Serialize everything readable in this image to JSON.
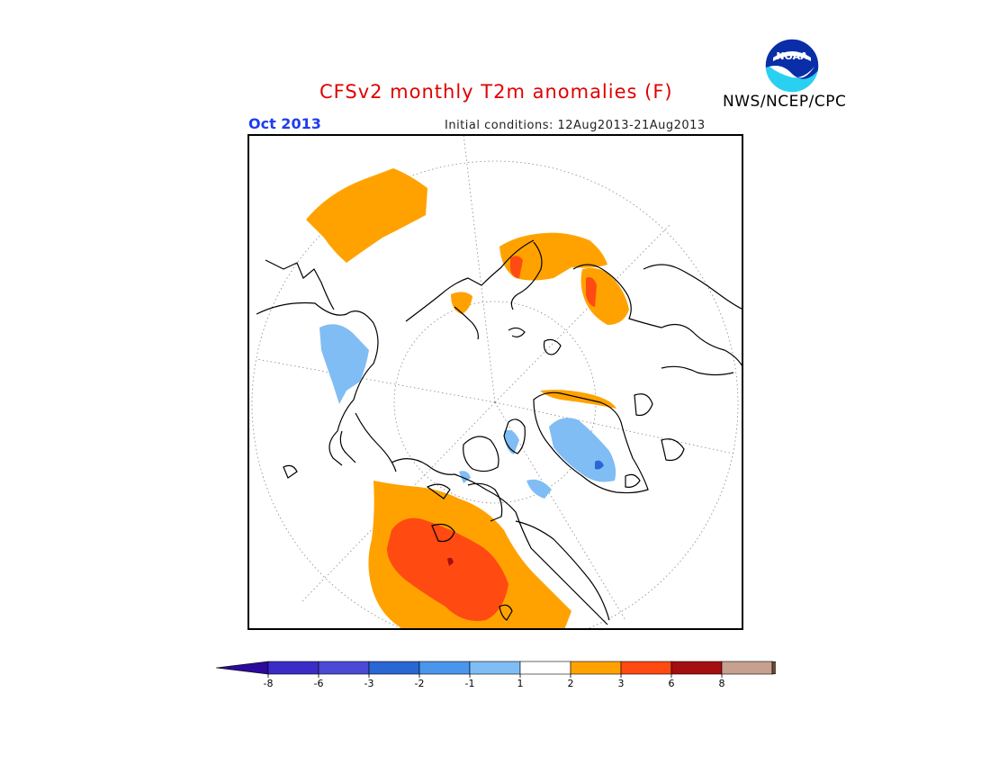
{
  "title": "CFSv2 monthly T2m anomalies (F)",
  "agency": "NWS/NCEP/CPC",
  "logo_text": "NOAA",
  "valid_month": "Oct 2013",
  "initial_conditions": "Initial conditions: 12Aug2013-21Aug2013",
  "colors": {
    "title": "#e00000",
    "valid_month": "#1e3cf0",
    "frame": "#000000"
  },
  "colorbar": {
    "ticks": [
      "-8",
      "-6",
      "-3",
      "-2",
      "-1",
      "1",
      "2",
      "3",
      "6",
      "8"
    ],
    "below_color": "#2b0a9c",
    "above_color": "#6b4a3a",
    "colors": [
      "#3b2cc8",
      "#4a4ad6",
      "#2a66d4",
      "#4a96ec",
      "#80bdf4",
      "#ffffff",
      "#ffa200",
      "#ff4a12",
      "#a50f0f",
      "#c8a090"
    ]
  },
  "anomaly_regions": [
    {
      "name": "eastern-siberia-warm",
      "category": "1 to 2"
    },
    {
      "name": "scandinavia-warm",
      "category": "1 to 2"
    },
    {
      "name": "scandinavia-warm-core",
      "category": "2 to 3"
    },
    {
      "name": "eastern-europe-warm",
      "category": "1 to 2"
    },
    {
      "name": "eastern-europe-warm-core",
      "category": "2 to 3"
    },
    {
      "name": "western-us-warm",
      "category": "1 to 2"
    },
    {
      "name": "western-us-warm-core",
      "category": "2 to 3"
    },
    {
      "name": "east-asia-cool",
      "category": "-2 to -1"
    },
    {
      "name": "greenland-cool",
      "category": "-2 to -1"
    },
    {
      "name": "canadian-archipelago-cool",
      "category": "-2 to -1"
    }
  ]
}
